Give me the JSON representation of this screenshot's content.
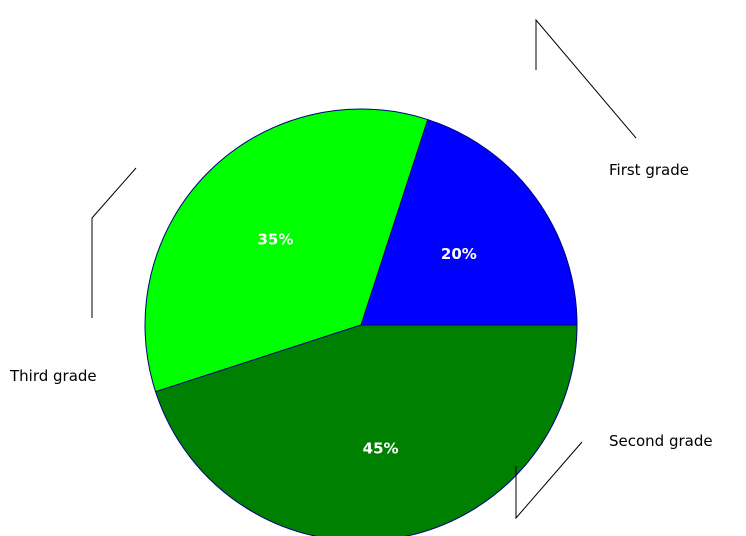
{
  "chart_data": {
    "type": "pie",
    "categories": [
      "First grade",
      "Second grade",
      "Third grade"
    ],
    "values": [
      20,
      35,
      45
    ],
    "value_labels": [
      "20%",
      "35%",
      "45%"
    ],
    "colors": [
      "#0000ff",
      "#00ff00",
      "#008000"
    ],
    "outline_color": "#000080",
    "start_angle_deg": 0,
    "direction": "counterclockwise",
    "legend": "none",
    "title": ""
  }
}
